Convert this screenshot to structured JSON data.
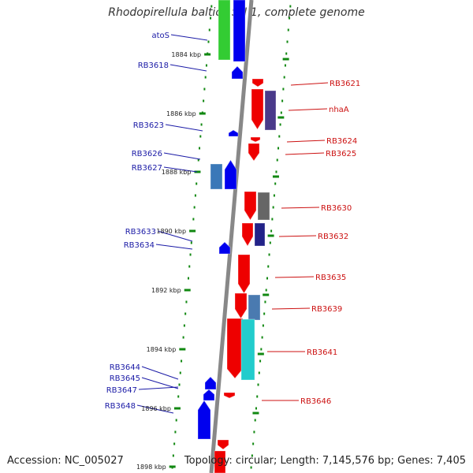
{
  "title": "Rhodopirellula baltica SH 1, complete genome",
  "footer": {
    "accession": "Accession: NC_005027",
    "topology": "Topology: circular; Length: 7,145,576 bp; Genes: 7,405"
  },
  "kbp_labels": [
    "1884 kbp",
    "1886 kbp",
    "1888 kbp",
    "1890 kbp",
    "1892 kbp",
    "1894 kbp",
    "1896 kbp",
    "1898 kbp"
  ],
  "left_genes": [
    "atoS",
    "RB3618",
    "RB3623",
    "RB3626",
    "RB3627",
    "RB3633",
    "RB3634",
    "RB3644",
    "RB3645",
    "RB3647",
    "RB3648"
  ],
  "right_genes": [
    "RB3621",
    "nhaA",
    "RB3624",
    "RB3625",
    "RB3630",
    "RB3632",
    "RB3635",
    "RB3639",
    "RB3641",
    "RB3646"
  ],
  "colors": {
    "left_label": "#1a1aa6",
    "right_label": "#cc1111",
    "forward_gene": "#0000ee",
    "reverse_gene": "#ee0000",
    "tick": "#118811",
    "backbone": "#888888"
  }
}
